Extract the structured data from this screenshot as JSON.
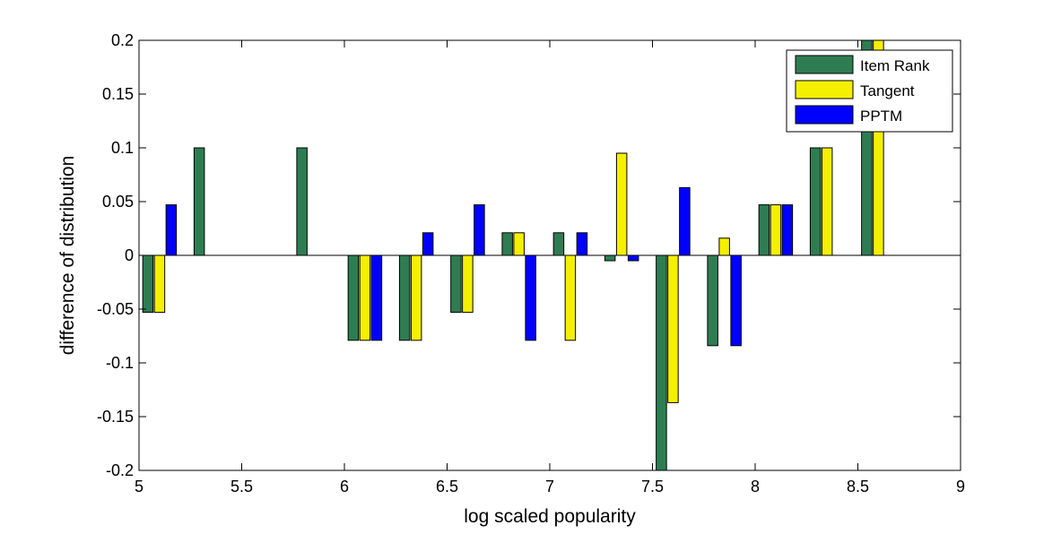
{
  "chart_data": {
    "type": "bar",
    "title": "",
    "xlabel": "log scaled popularity",
    "ylabel": "difference of distribution",
    "xlim": [
      5,
      9
    ],
    "ylim": [
      -0.2,
      0.2
    ],
    "xticks": [
      "5",
      "5.5",
      "6",
      "6.5",
      "7",
      "7.5",
      "8",
      "8.5",
      "9"
    ],
    "yticks": [
      "-0.2",
      "-0.15",
      "-0.1",
      "-0.05",
      "0",
      "0.05",
      "0.1",
      "0.15",
      "0.2"
    ],
    "x": [
      5.1,
      5.35,
      5.85,
      6.1,
      6.35,
      6.6,
      6.85,
      7.1,
      7.35,
      7.6,
      7.85,
      8.1,
      8.35,
      8.6
    ],
    "series": [
      {
        "name": "Item Rank",
        "color": "#2e7d52",
        "values": [
          -0.053,
          0.1,
          0.1,
          -0.079,
          -0.079,
          -0.053,
          0.021,
          0.021,
          -0.005,
          -0.2,
          -0.084,
          0.047,
          0.1,
          0.2
        ]
      },
      {
        "name": "Tangent",
        "color": "#f5f000",
        "values": [
          -0.053,
          0,
          0,
          -0.079,
          -0.079,
          -0.053,
          0.021,
          -0.079,
          0.095,
          -0.137,
          0.016,
          0.047,
          0.1,
          0.2
        ]
      },
      {
        "name": "PPTM",
        "color": "#0000ff",
        "values": [
          0.047,
          0,
          0,
          -0.079,
          0.021,
          0.047,
          -0.079,
          0.021,
          -0.005,
          0.063,
          -0.084,
          0.047,
          0,
          0
        ]
      }
    ],
    "grid": false,
    "legend": "top-right"
  }
}
